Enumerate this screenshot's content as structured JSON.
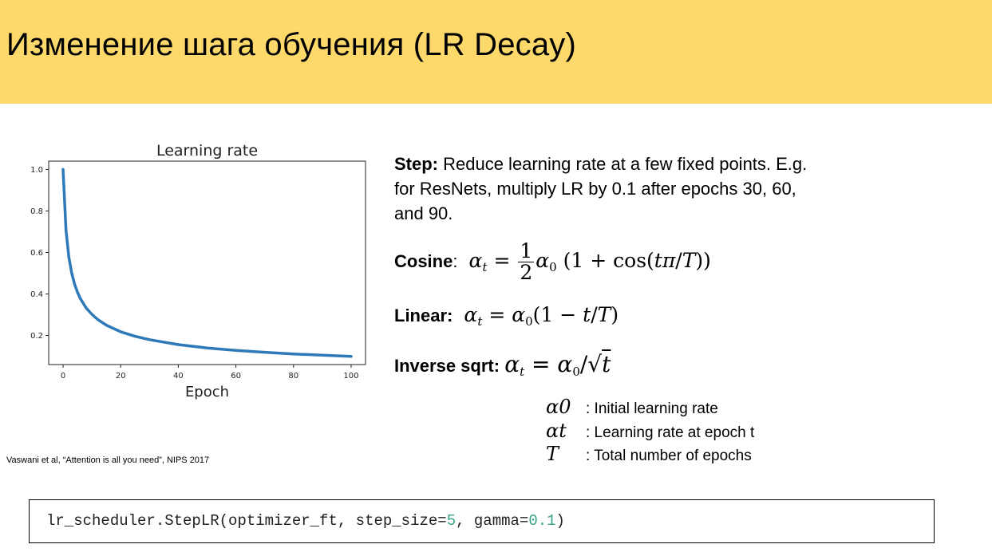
{
  "slide": {
    "title": "Изменение шага обучения (LR Decay)",
    "header_color": "#fdd96b"
  },
  "citation": "Vaswani et al, “Attention is all you need”, NIPS 2017",
  "schedules": {
    "step": {
      "label": "Step:",
      "text": " Reduce learning rate at a few fixed points. E.g. for ResNets, multiply LR by 0.1 after epochs 30, 60, and 90."
    },
    "cosine": {
      "label": "Cosine",
      "sep": ":"
    },
    "linear": {
      "label": "Linear:"
    },
    "inverse_sqrt": {
      "label": "Inverse sqrt:"
    }
  },
  "legend": [
    {
      "symbol": "α0",
      "text": ": Initial learning rate"
    },
    {
      "symbol": "αt",
      "text": ": Learning rate at epoch t"
    },
    {
      "symbol": "T",
      "text": ": Total number of epochs"
    }
  ],
  "code": {
    "prefix": "lr_scheduler.StepLR(optimizer_ft, step_size=",
    "step_size": "5",
    "middle": ", gamma=",
    "gamma": "0.1",
    "suffix": ")"
  },
  "chart_data": {
    "type": "line",
    "title": "Learning rate",
    "xlabel": "Epoch",
    "ylabel": "",
    "xlim": [
      -5,
      105
    ],
    "ylim": [
      0.06,
      1.04
    ],
    "xticks": [
      0,
      20,
      40,
      60,
      80,
      100
    ],
    "yticks": [
      0.2,
      0.4,
      0.6,
      0.8,
      1.0
    ],
    "xtick_labels": [
      "0",
      "20",
      "40",
      "60",
      "80",
      "100"
    ],
    "ytick_labels": [
      "0.2",
      "0.4",
      "0.6",
      "0.8",
      "1.0"
    ],
    "grid": false,
    "line_color": "#2e7ab8",
    "series": [
      {
        "x": [
          0,
          1,
          2,
          3,
          4,
          5,
          6,
          8,
          10,
          12,
          15,
          20,
          25,
          30,
          40,
          50,
          60,
          70,
          80,
          90,
          100
        ],
        "values": [
          1.0,
          0.707,
          0.577,
          0.5,
          0.447,
          0.408,
          0.378,
          0.333,
          0.302,
          0.277,
          0.25,
          0.218,
          0.196,
          0.18,
          0.156,
          0.14,
          0.128,
          0.119,
          0.111,
          0.105,
          0.0995
        ]
      }
    ]
  }
}
